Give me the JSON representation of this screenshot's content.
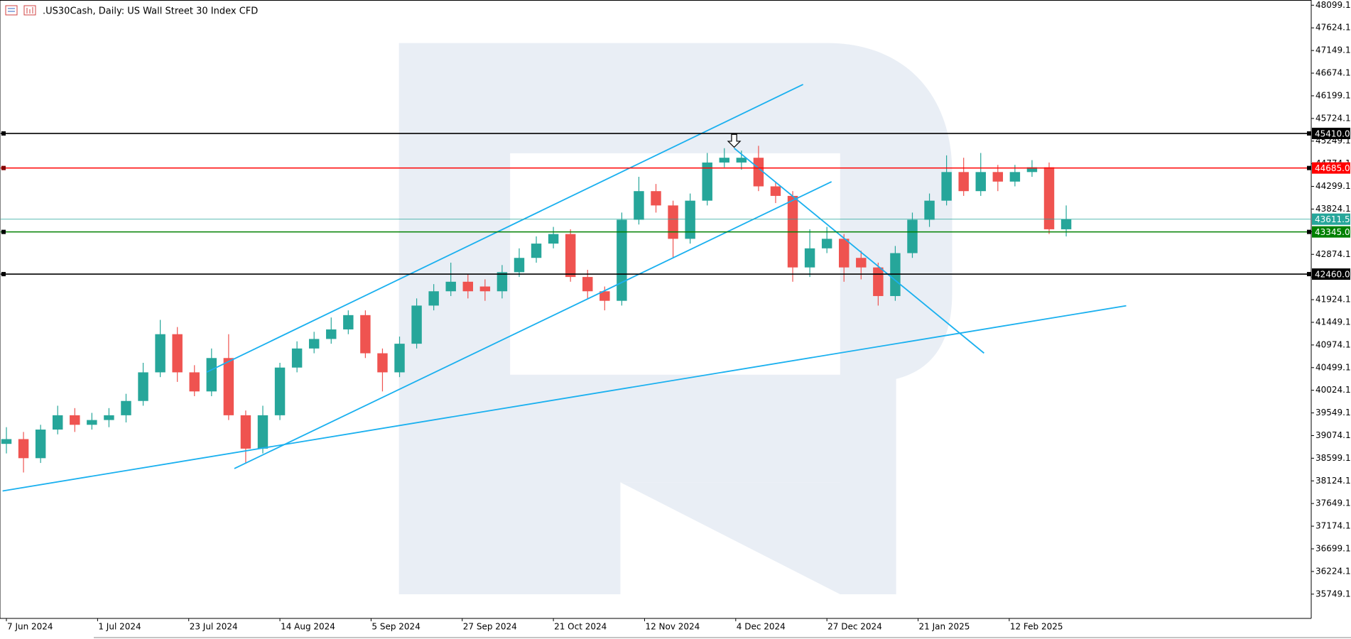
{
  "chart_data": {
    "type": "candlestick",
    "title": ".US30Cash, Daily:  US Wall Street 30 Index CFD",
    "up_color": "#26a69a",
    "down_color": "#ef5350",
    "x": [
      0,
      3,
      6,
      9,
      12,
      15,
      18,
      21,
      24,
      27,
      30,
      33,
      36,
      39,
      42,
      45,
      48,
      51,
      54,
      57,
      60,
      63,
      66,
      69,
      72,
      75,
      78,
      81,
      84,
      87,
      90,
      93,
      96,
      99,
      102,
      105,
      108,
      111,
      114,
      117,
      120,
      123,
      126,
      129,
      132,
      135,
      138,
      141,
      144,
      147,
      150,
      153,
      156,
      159,
      162,
      165,
      168,
      171,
      174,
      177,
      180,
      183,
      186
    ],
    "open": [
      38900,
      39000,
      38600,
      39200,
      39500,
      39300,
      39400,
      39500,
      39800,
      40400,
      41200,
      40400,
      40000,
      40700,
      39500,
      38800,
      39500,
      40500,
      40900,
      41100,
      41300,
      41600,
      40800,
      40400,
      41000,
      41800,
      42100,
      42300,
      42200,
      42100,
      42500,
      42800,
      43100,
      43300,
      42400,
      42100,
      41900,
      43600,
      44200,
      43900,
      43200,
      44000,
      44800,
      44800,
      44900,
      44300,
      44100,
      42600,
      43000,
      43200,
      42800,
      42600,
      42000,
      42900,
      43600,
      44000,
      44600,
      44200,
      44600,
      44400,
      44600,
      44700,
      43400
    ],
    "high": [
      39250,
      39150,
      39300,
      39700,
      39650,
      39550,
      39650,
      39950,
      40600,
      41500,
      41350,
      40550,
      40900,
      41200,
      39600,
      39700,
      40600,
      41050,
      41250,
      41550,
      41700,
      41700,
      40900,
      41150,
      41950,
      42250,
      42700,
      42450,
      42350,
      42650,
      43000,
      43250,
      43450,
      43400,
      42550,
      42200,
      43750,
      44500,
      44350,
      44000,
      44150,
      45000,
      45100,
      45050,
      45150,
      44400,
      44200,
      43400,
      43450,
      43300,
      42950,
      42700,
      43050,
      43750,
      44150,
      44950,
      44900,
      45000,
      44750,
      44750,
      44850,
      44800,
      43900
    ],
    "low": [
      38700,
      38300,
      38500,
      39100,
      39150,
      39200,
      39250,
      39350,
      39700,
      40300,
      40200,
      39900,
      39900,
      39400,
      38500,
      38700,
      39400,
      40400,
      40800,
      41000,
      41200,
      40700,
      40000,
      40300,
      40900,
      41700,
      42000,
      41950,
      41900,
      41950,
      42400,
      42700,
      43000,
      42300,
      41950,
      41700,
      41800,
      43500,
      43750,
      42800,
      43100,
      43900,
      44700,
      44650,
      44200,
      43950,
      42300,
      42400,
      42900,
      42300,
      42350,
      41800,
      41900,
      42800,
      43450,
      43900,
      44100,
      44100,
      44200,
      44300,
      44500,
      43300,
      43250
    ],
    "close": [
      39000,
      38600,
      39200,
      39500,
      39300,
      39400,
      39500,
      39800,
      40400,
      41200,
      40400,
      40000,
      40700,
      39500,
      38800,
      39500,
      40500,
      40900,
      41100,
      41300,
      41600,
      40800,
      40400,
      41000,
      41800,
      42100,
      42300,
      42100,
      42100,
      42500,
      42800,
      43100,
      43300,
      42400,
      42100,
      41900,
      43600,
      44200,
      43900,
      43200,
      44000,
      44800,
      44900,
      44900,
      44300,
      44100,
      42600,
      43000,
      43200,
      42600,
      42600,
      42000,
      42900,
      43600,
      44000,
      44600,
      44200,
      44600,
      44400,
      44600,
      44700,
      43400,
      43611.5
    ],
    "xlim": [
      -1,
      229
    ],
    "ylim": [
      35240,
      48208
    ],
    "xticks": [
      {
        "value": 0,
        "label": "7 Jun 2024"
      },
      {
        "value": 16,
        "label": "1 Jul 2024"
      },
      {
        "value": 32,
        "label": "23 Jul 2024"
      },
      {
        "value": 48,
        "label": "14 Aug 2024"
      },
      {
        "value": 64,
        "label": "5 Sep 2024"
      },
      {
        "value": 80,
        "label": "27 Sep 2024"
      },
      {
        "value": 96,
        "label": "21 Oct 2024"
      },
      {
        "value": 112,
        "label": "12 Nov 2024"
      },
      {
        "value": 128,
        "label": "4 Dec 2024"
      },
      {
        "value": 144,
        "label": "27 Dec 2024"
      },
      {
        "value": 160,
        "label": "21 Jan 2025"
      },
      {
        "value": 176,
        "label": "12 Feb 2025"
      }
    ],
    "yticks": [
      35749.1,
      36224.1,
      36699.1,
      37174.1,
      37649.1,
      38124.1,
      38599.1,
      39074.1,
      39549.1,
      40024.1,
      40499.1,
      40974.1,
      41449.1,
      41924.1,
      42399.1,
      42874.1,
      43349.1,
      43824.1,
      44299.1,
      44774.1,
      45249.1,
      45724.1,
      46199.1,
      46674.1,
      47149.1,
      47624.1,
      48099.1
    ],
    "price_lines": [
      {
        "value": 45410,
        "label": "45410.0",
        "color": "#000000"
      },
      {
        "value": 44685,
        "label": "44685.0",
        "color": "#ff0000"
      },
      {
        "value": 43611.5,
        "color": "#26a69a"
      },
      {
        "value": 43345,
        "label": "43345.0",
        "color": "#008000"
      },
      {
        "value": 42460,
        "label": "42460.0",
        "color": "#000000"
      }
    ]
  }
}
